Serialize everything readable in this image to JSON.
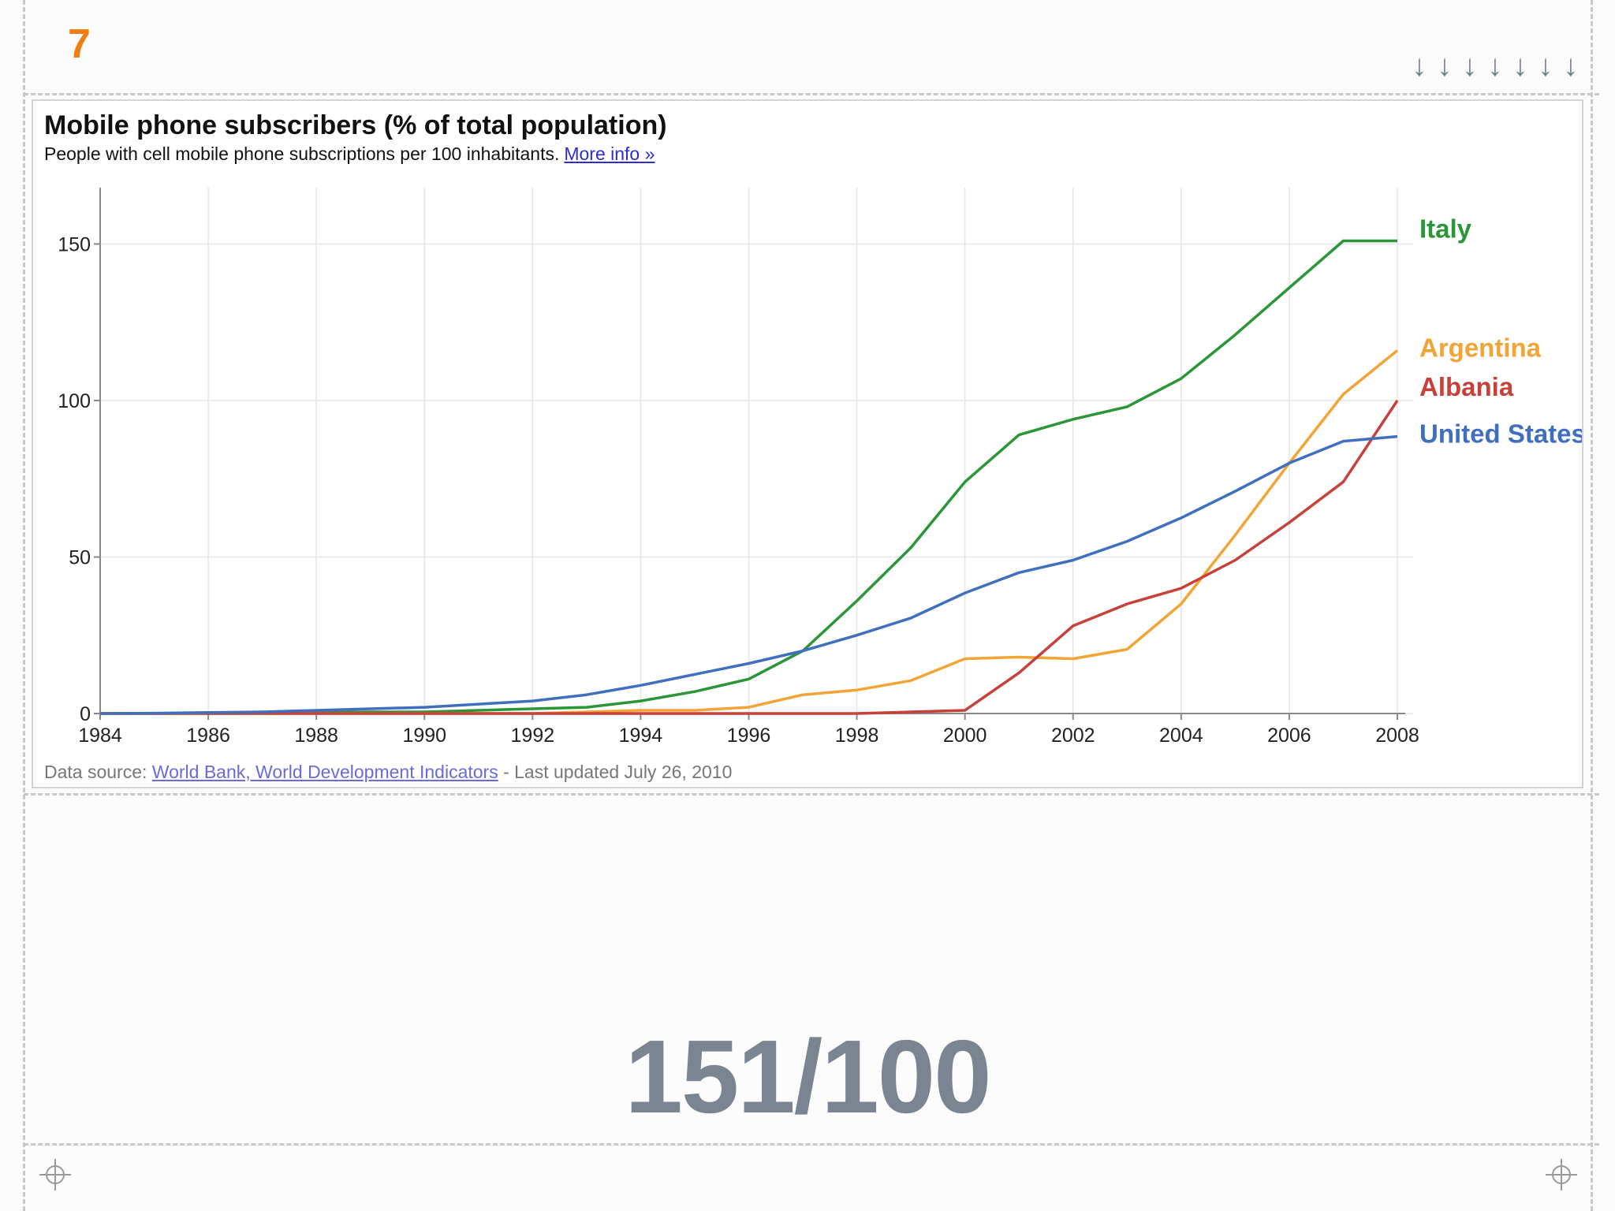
{
  "slide": {
    "number": "7",
    "arrows": [
      "↓",
      "↓",
      "↓",
      "↓",
      "↓",
      "↓",
      "↓"
    ],
    "big_figure": "151/100"
  },
  "chart": {
    "title": "Mobile phone subscribers (% of total population)",
    "subtitle": "People with cell mobile phone subscriptions per 100 inhabitants.",
    "more_info": "More info »",
    "source_label": "Data source:",
    "source_link": "World Bank, World Development Indicators",
    "source_suffix": "- Last updated July 26, 2010"
  },
  "chart_data": {
    "type": "line",
    "title": "Mobile phone subscribers (% of total population)",
    "xlabel": "",
    "ylabel": "",
    "xlim": [
      1984,
      2008
    ],
    "ylim": [
      0,
      168
    ],
    "x_ticks": [
      "1984",
      "1986",
      "1988",
      "1990",
      "1992",
      "1994",
      "1996",
      "1998",
      "2000",
      "2002",
      "2004",
      "2006",
      "2008"
    ],
    "y_ticks": [
      "0",
      "50",
      "100",
      "150"
    ],
    "x": [
      1984,
      1985,
      1986,
      1987,
      1988,
      1989,
      1990,
      1991,
      1992,
      1993,
      1994,
      1995,
      1996,
      1997,
      1998,
      1999,
      2000,
      2001,
      2002,
      2003,
      2004,
      2005,
      2006,
      2007,
      2008
    ],
    "series": [
      {
        "name": "Italy",
        "color": "#2a9638",
        "values": [
          0,
          0,
          0.1,
          0.2,
          0.3,
          0.5,
          0.5,
          1,
          1.5,
          2,
          4,
          7,
          11,
          20,
          36,
          53,
          74,
          89,
          94,
          98,
          107,
          121,
          136,
          151,
          151
        ]
      },
      {
        "name": "Argentina",
        "color": "#f2a536",
        "values": [
          0,
          0,
          0,
          0,
          0,
          0,
          0,
          0,
          0,
          0.5,
          1,
          1,
          2,
          6,
          7.5,
          10.5,
          17.5,
          18,
          17.5,
          20.5,
          35,
          57,
          80,
          102,
          116
        ]
      },
      {
        "name": "Albania",
        "color": "#c8403a",
        "values": [
          0,
          0,
          0,
          0,
          0,
          0,
          0,
          0,
          0,
          0,
          0,
          0,
          0,
          0,
          0,
          0.5,
          1,
          13,
          28,
          35,
          40,
          49,
          61,
          74,
          100
        ]
      },
      {
        "name": "United States",
        "color": "#3f6fbe",
        "values": [
          0,
          0.1,
          0.3,
          0.5,
          1,
          1.5,
          2,
          3,
          4,
          6,
          9,
          12.5,
          16,
          20,
          25,
          30.5,
          38.5,
          45,
          49,
          55,
          62.5,
          71,
          80,
          87,
          88.5
        ]
      }
    ],
    "legend": "right-end labels"
  }
}
